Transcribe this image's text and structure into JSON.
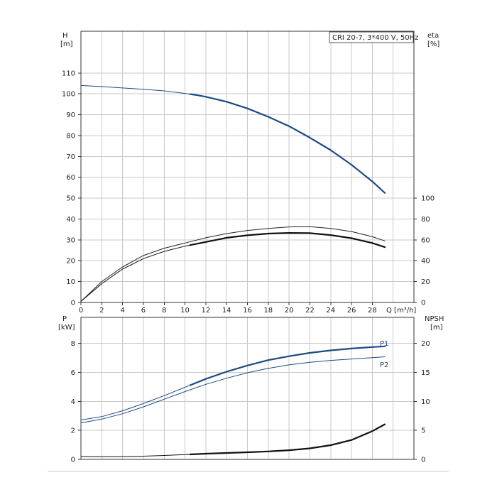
{
  "chart_data": {
    "type": "line",
    "legend_box": "CRI 20-7, 3*400 V, 50Hz",
    "x_axis": {
      "label": "Q [m³/h]",
      "range": [
        0,
        32
      ],
      "ticks": [
        0,
        2,
        4,
        6,
        8,
        10,
        12,
        14,
        16,
        18,
        20,
        22,
        24,
        26,
        28
      ]
    },
    "top_panel": {
      "y_left": {
        "name": "H",
        "unit": "[m]",
        "range": [
          0,
          130
        ],
        "ticks": [
          0,
          10,
          20,
          30,
          40,
          50,
          60,
          70,
          80,
          90,
          100,
          110
        ]
      },
      "y_right": {
        "name": "eta",
        "unit": "[%]",
        "range": [
          0,
          130
        ],
        "ticks": [
          0,
          10,
          20,
          30,
          40,
          50
        ],
        "tick_labels": [
          "0",
          "20",
          "40",
          "60",
          "80",
          "100"
        ]
      },
      "series": [
        {
          "id": "head",
          "color": "#1b4a82",
          "points": [
            [
              0,
              104
            ],
            [
              2,
              103.5
            ],
            [
              4,
              102.8
            ],
            [
              6,
              102.2
            ],
            [
              8,
              101.4
            ],
            [
              10,
              100.2
            ],
            [
              11,
              99.5
            ],
            [
              12,
              98.6
            ],
            [
              14,
              96.2
            ],
            [
              16,
              93
            ],
            [
              18,
              89
            ],
            [
              20,
              84.5
            ],
            [
              22,
              79
            ],
            [
              24,
              73
            ],
            [
              26,
              66
            ],
            [
              28,
              58
            ],
            [
              29.2,
              52.5
            ]
          ],
          "thick_from": 10.5
        },
        {
          "id": "efficiency-pump",
          "color": "#222222",
          "points": [
            [
              0,
              0.5
            ],
            [
              2,
              10
            ],
            [
              4,
              17
            ],
            [
              6,
              22.5
            ],
            [
              8,
              26
            ],
            [
              10,
              28.5
            ],
            [
              12,
              31
            ],
            [
              14,
              33
            ],
            [
              16,
              34.5
            ],
            [
              18,
              35.5
            ],
            [
              20,
              36.2
            ],
            [
              22,
              36.3
            ],
            [
              24,
              35.5
            ],
            [
              26,
              34
            ],
            [
              28,
              31.5
            ],
            [
              29.2,
              29.5
            ]
          ],
          "thick_from": null
        },
        {
          "id": "efficiency-total",
          "color": "#111111",
          "points": [
            [
              0,
              0.5
            ],
            [
              2,
              9
            ],
            [
              4,
              16
            ],
            [
              6,
              21
            ],
            [
              8,
              24.5
            ],
            [
              10,
              27
            ],
            [
              12,
              29
            ],
            [
              14,
              31
            ],
            [
              16,
              32.2
            ],
            [
              18,
              33
            ],
            [
              20,
              33.3
            ],
            [
              22,
              33.2
            ],
            [
              24,
              32.3
            ],
            [
              26,
              30.8
            ],
            [
              28,
              28.5
            ],
            [
              29.2,
              26.5
            ]
          ],
          "thick_from": 10.5
        }
      ]
    },
    "bottom_panel": {
      "y_left": {
        "name": "P",
        "unit": "[kW]",
        "range": [
          0,
          9.8
        ],
        "ticks": [
          0,
          2,
          4,
          6,
          8
        ]
      },
      "y_right": {
        "name": "NPSH",
        "unit": "[m]",
        "range": [
          0,
          9.8
        ],
        "ticks": [
          0,
          2,
          4,
          6,
          8
        ],
        "tick_labels": [
          "0",
          "5",
          "10",
          "15",
          "20"
        ]
      },
      "series": [
        {
          "id": "power-p1",
          "label": "P1",
          "color": "#1b4a82",
          "points": [
            [
              0,
              2.72
            ],
            [
              2,
              2.95
            ],
            [
              4,
              3.35
            ],
            [
              6,
              3.85
            ],
            [
              8,
              4.4
            ],
            [
              10,
              4.98
            ],
            [
              12,
              5.55
            ],
            [
              14,
              6.05
            ],
            [
              16,
              6.48
            ],
            [
              18,
              6.85
            ],
            [
              20,
              7.12
            ],
            [
              22,
              7.35
            ],
            [
              24,
              7.52
            ],
            [
              26,
              7.65
            ],
            [
              28,
              7.75
            ],
            [
              29.2,
              7.8
            ]
          ],
          "thick_from": 10.5
        },
        {
          "id": "power-p2",
          "label": "P2",
          "color": "#1b4a82",
          "points": [
            [
              0,
              2.52
            ],
            [
              2,
              2.78
            ],
            [
              4,
              3.15
            ],
            [
              6,
              3.62
            ],
            [
              8,
              4.15
            ],
            [
              10,
              4.68
            ],
            [
              12,
              5.18
            ],
            [
              14,
              5.6
            ],
            [
              16,
              5.98
            ],
            [
              18,
              6.28
            ],
            [
              20,
              6.52
            ],
            [
              22,
              6.7
            ],
            [
              24,
              6.83
            ],
            [
              26,
              6.93
            ],
            [
              28,
              7.02
            ],
            [
              29.2,
              7.08
            ]
          ],
          "thick_from": null
        },
        {
          "id": "npsh",
          "color": "#111111",
          "points": [
            [
              0,
              0.2
            ],
            [
              2,
              0.18
            ],
            [
              4,
              0.19
            ],
            [
              6,
              0.22
            ],
            [
              8,
              0.27
            ],
            [
              10,
              0.33
            ],
            [
              12,
              0.39
            ],
            [
              14,
              0.44
            ],
            [
              16,
              0.49
            ],
            [
              18,
              0.55
            ],
            [
              20,
              0.63
            ],
            [
              22,
              0.76
            ],
            [
              24,
              0.98
            ],
            [
              26,
              1.34
            ],
            [
              28,
              1.95
            ],
            [
              29.2,
              2.42
            ]
          ],
          "thick_from": 10.5
        }
      ]
    }
  }
}
